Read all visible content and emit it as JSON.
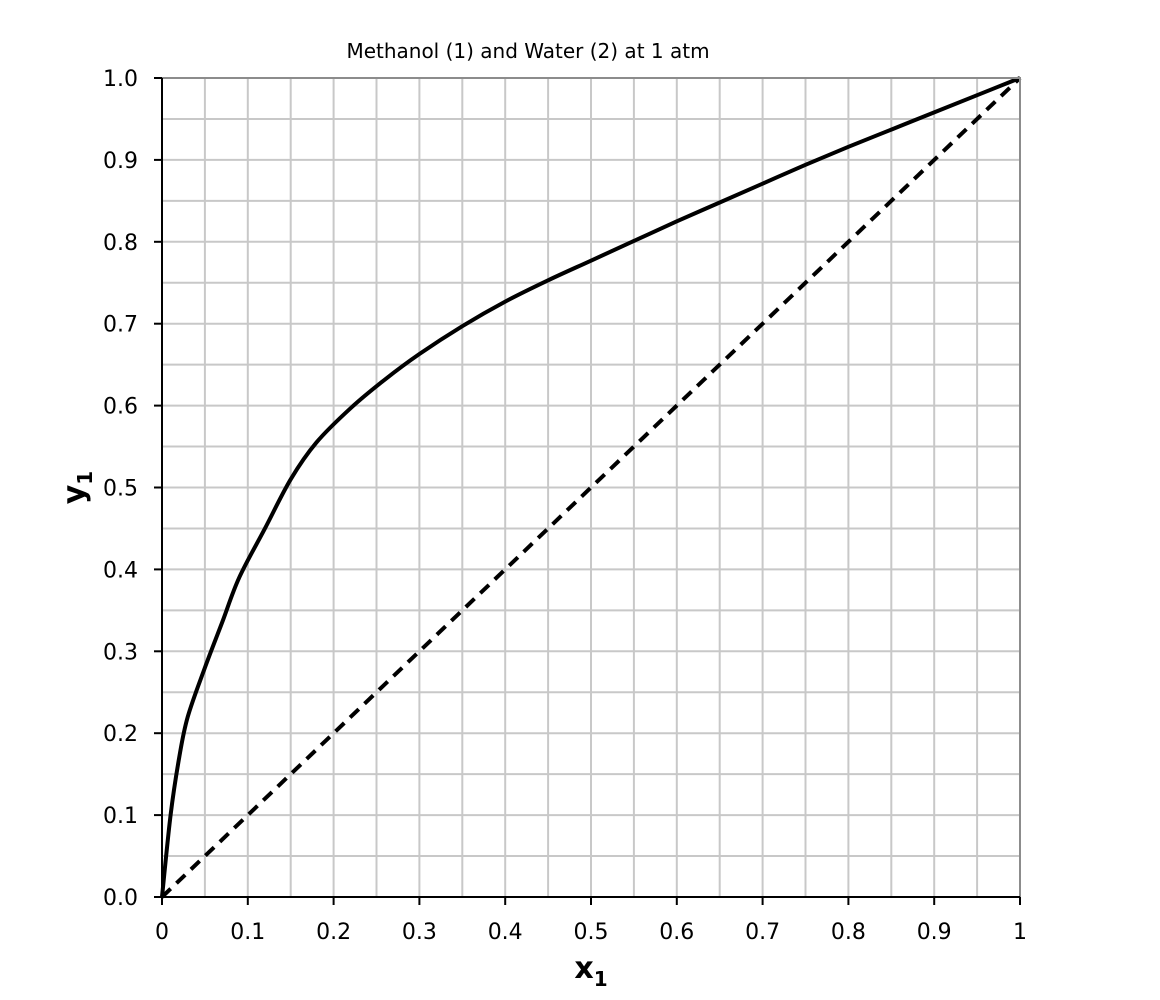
{
  "chart_data": {
    "type": "line",
    "title": "Methanol (1) and Water (2) at 1 atm",
    "xlabel": "x",
    "xlabel_sub": "1",
    "ylabel": "y",
    "ylabel_sub": "1",
    "xlim": [
      0,
      1
    ],
    "ylim": [
      0,
      1
    ],
    "x_ticks": [
      "0",
      "0.1",
      "0.2",
      "0.3",
      "0.4",
      "0.5",
      "0.6",
      "0.7",
      "0.8",
      "0.9",
      "1"
    ],
    "y_ticks": [
      "0.0",
      "0.1",
      "0.2",
      "0.3",
      "0.4",
      "0.5",
      "0.6",
      "0.7",
      "0.8",
      "0.9",
      "1.0"
    ],
    "major_step": 0.1,
    "minor_step": 0.05,
    "grid": true,
    "series": [
      {
        "style": "solid",
        "color": "#000000",
        "x": [
          0,
          0.01,
          0.02,
          0.03,
          0.05,
          0.07,
          0.09,
          0.12,
          0.15,
          0.18,
          0.22,
          0.26,
          0.3,
          0.35,
          0.4,
          0.45,
          0.5,
          0.55,
          0.6,
          0.65,
          0.7,
          0.75,
          0.8,
          0.85,
          0.9,
          0.95,
          1.0
        ],
        "y": [
          0,
          0.1,
          0.17,
          0.22,
          0.28,
          0.335,
          0.39,
          0.45,
          0.51,
          0.555,
          0.597,
          0.632,
          0.663,
          0.697,
          0.727,
          0.753,
          0.777,
          0.801,
          0.825,
          0.848,
          0.871,
          0.894,
          0.916,
          0.937,
          0.958,
          0.979,
          1.0
        ]
      },
      {
        "style": "dashed",
        "color": "#000000",
        "x": [
          0,
          1
        ],
        "y": [
          0,
          1
        ]
      }
    ]
  }
}
